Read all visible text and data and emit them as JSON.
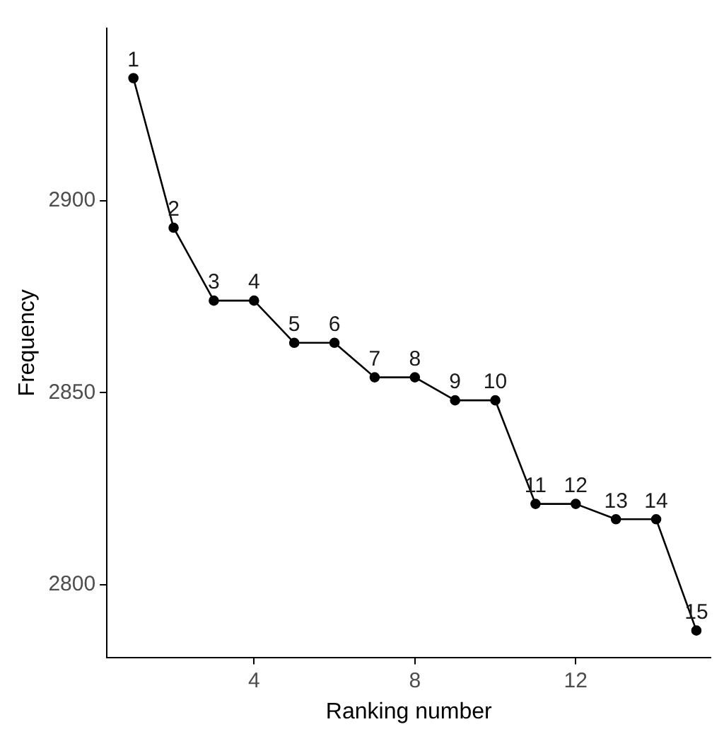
{
  "chart_data": {
    "type": "line",
    "xlabel": "Ranking number",
    "ylabel": "Frequency",
    "x": [
      1,
      2,
      3,
      4,
      5,
      6,
      7,
      8,
      9,
      10,
      11,
      12,
      13,
      14,
      15
    ],
    "series": [
      {
        "color": "#000000",
        "values": [
          2932,
          2893,
          2874,
          2874,
          2863,
          2863,
          2854,
          2854,
          2848,
          2848,
          2821,
          2821,
          2817,
          2817,
          2788
        ]
      }
    ],
    "annotations": [
      {
        "text": "1",
        "x": 1,
        "y": 2932
      },
      {
        "text": "2",
        "x": 2,
        "y": 2893
      },
      {
        "text": "3",
        "x": 3,
        "y": 2874
      },
      {
        "text": "4",
        "x": 4,
        "y": 2874
      },
      {
        "text": "5",
        "x": 5,
        "y": 2863
      },
      {
        "text": "6",
        "x": 6,
        "y": 2863
      },
      {
        "text": "7",
        "x": 7,
        "y": 2854
      },
      {
        "text": "8",
        "x": 8,
        "y": 2854
      },
      {
        "text": "9",
        "x": 9,
        "y": 2848
      },
      {
        "text": "10",
        "x": 10,
        "y": 2848
      },
      {
        "text": "11",
        "x": 11,
        "y": 2821
      },
      {
        "text": "12",
        "x": 12,
        "y": 2821
      },
      {
        "text": "13",
        "x": 13,
        "y": 2817
      },
      {
        "text": "14",
        "x": 14,
        "y": 2817
      },
      {
        "text": "15",
        "x": 15,
        "y": 2788
      }
    ],
    "xlim": [
      0.34,
      15.36
    ],
    "xticks": [
      4,
      8,
      12
    ],
    "ylim": [
      2781,
      2945
    ],
    "yticks": [
      2800,
      2850,
      2900
    ],
    "grid": false,
    "legend": false,
    "marker": "circle",
    "line_style": "solid"
  }
}
